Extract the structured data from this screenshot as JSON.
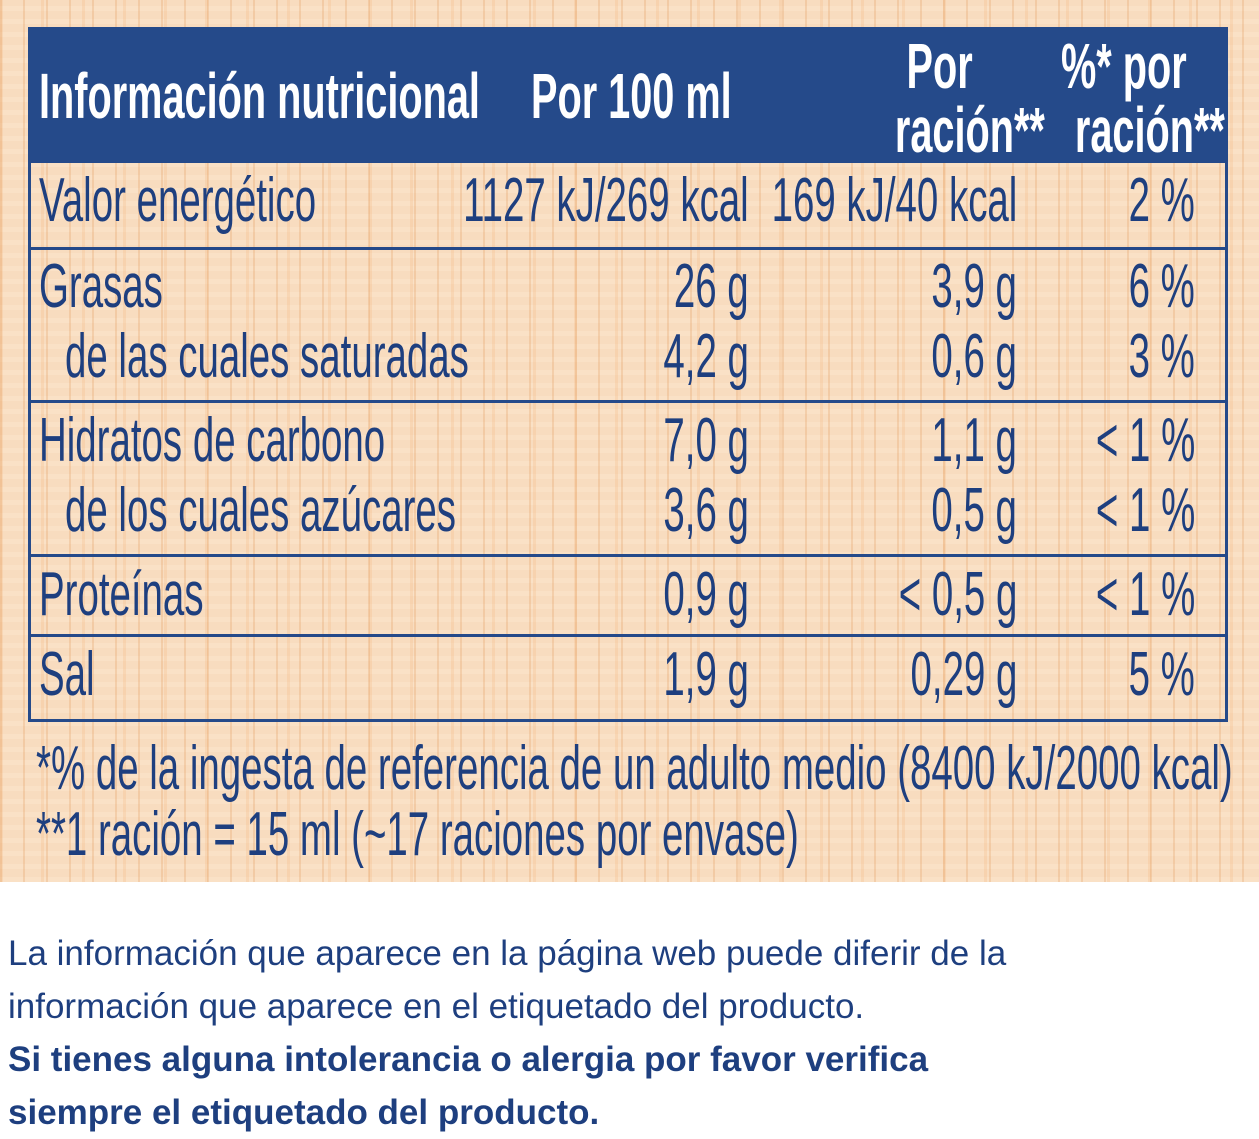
{
  "table": {
    "headers": {
      "col1": "Información nutricional",
      "col2": "Por 100 ml",
      "col3_line1": "Por",
      "col3_line2": "ración**",
      "col4_line1": "%* por",
      "col4_line2": "ración**"
    },
    "rows": [
      {
        "name": "Valor energético",
        "per100": "1127 kJ/269 kcal",
        "perServing": "169 kJ/40 kcal",
        "pct": "2 %"
      },
      {
        "name": "Grasas",
        "per100": "26 g",
        "perServing": "3,9 g",
        "pct": "6 %"
      },
      {
        "name": "de las cuales saturadas",
        "per100": "4,2 g",
        "perServing": "0,6 g",
        "pct": "3 %"
      },
      {
        "name": "Hidratos de carbono",
        "per100": "7,0 g",
        "perServing": "1,1 g",
        "pct": "< 1 %"
      },
      {
        "name": "de los cuales azúcares",
        "per100": "3,6 g",
        "perServing": "0,5 g",
        "pct": "< 1 %"
      },
      {
        "name": "Proteínas",
        "per100": "0,9 g",
        "perServing": "< 0,5 g",
        "pct": "< 1 %"
      },
      {
        "name": "Sal",
        "per100": "1,9 g",
        "perServing": "0,29 g",
        "pct": "5 %"
      }
    ]
  },
  "footnotes": {
    "note1": "*% de la ingesta de referencia de un adulto medio (8400 kJ/2000 kcal)",
    "note2": "**1 ración = 15 ml (~17 raciones por envase)"
  },
  "disclaimer": {
    "line1": "La información que aparece en la página web puede diferir de la",
    "line2": "información que aparece en el etiquetado del producto.",
    "bold1": "Si tienes alguna intolerancia o alergia por favor verifica",
    "bold2": "siempre el etiquetado del producto."
  },
  "colors": {
    "navy": "#254a8a",
    "text": "#1e3f7f",
    "label_bg": "#f8dcbf"
  }
}
